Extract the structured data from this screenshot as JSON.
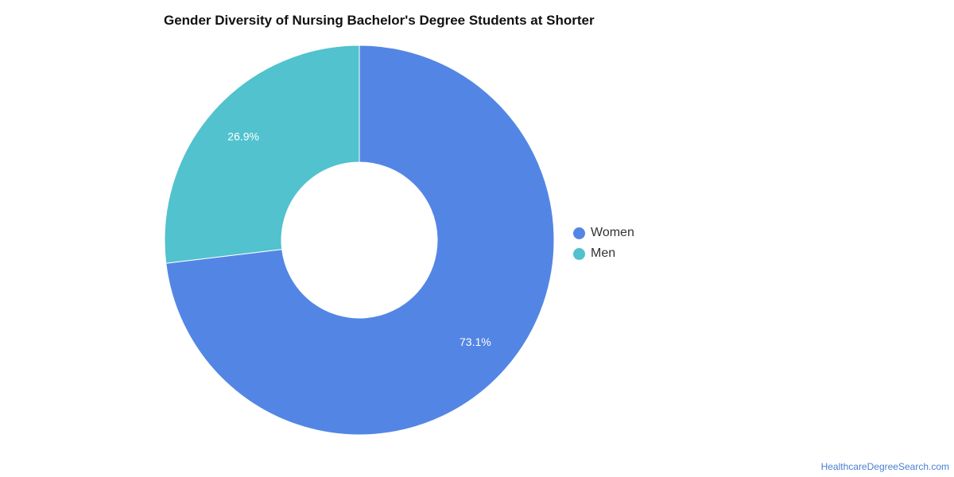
{
  "chart_data": {
    "type": "pie",
    "title": "Gender Diversity of Nursing Bachelor's Degree Students at Shorter",
    "donut": true,
    "legend_position": "right",
    "slices": [
      {
        "label": "Women",
        "value": 73.1,
        "value_label": "73.1%",
        "color": "#5386e4"
      },
      {
        "label": "Men",
        "value": 26.9,
        "value_label": "26.9%",
        "color": "#51c2ce"
      }
    ]
  },
  "footer": {
    "source": "HealthcareDegreeSearch.com"
  }
}
